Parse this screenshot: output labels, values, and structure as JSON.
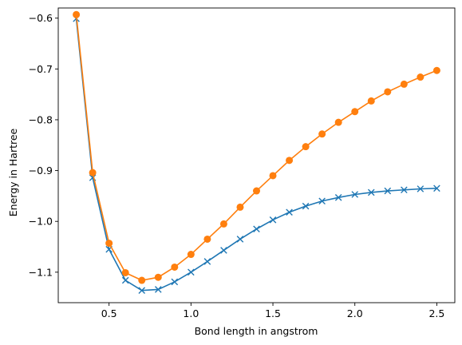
{
  "chart_data": {
    "type": "line",
    "title": "",
    "xlabel": "Bond length in angstrom",
    "ylabel": "Energy in Hartree",
    "xlim": [
      0.19,
      2.61
    ],
    "ylim": [
      -1.16,
      -0.58
    ],
    "xticks": [
      0.5,
      1.0,
      1.5,
      2.0,
      2.5
    ],
    "xtick_labels": [
      "0.5",
      "1.0",
      "1.5",
      "2.0",
      "2.5"
    ],
    "yticks": [
      -0.6,
      -0.7,
      -0.8,
      -0.9,
      -1.0,
      -1.1
    ],
    "ytick_labels": [
      "−0.6",
      "−0.7",
      "−0.8",
      "−0.9",
      "−1.0",
      "−1.1"
    ],
    "grid": false,
    "legend": "none",
    "x": [
      0.3,
      0.4,
      0.5,
      0.6,
      0.7,
      0.8,
      0.9,
      1.0,
      1.1,
      1.2,
      1.3,
      1.4,
      1.5,
      1.6,
      1.7,
      1.8,
      1.9,
      2.0,
      2.1,
      2.2,
      2.3,
      2.4,
      2.5
    ],
    "series": [
      {
        "color": "#1f77b4",
        "marker": "x",
        "values": [
          -0.601,
          -0.914,
          -1.055,
          -1.116,
          -1.136,
          -1.134,
          -1.119,
          -1.1,
          -1.079,
          -1.057,
          -1.035,
          -1.015,
          -0.997,
          -0.982,
          -0.97,
          -0.96,
          -0.953,
          -0.947,
          -0.943,
          -0.94,
          -0.938,
          -0.936,
          -0.935
        ]
      },
      {
        "color": "#ff7f0e",
        "marker": "o",
        "values": [
          -0.593,
          -0.904,
          -1.043,
          -1.101,
          -1.116,
          -1.11,
          -1.09,
          -1.065,
          -1.035,
          -1.005,
          -0.972,
          -0.94,
          -0.91,
          -0.88,
          -0.853,
          -0.828,
          -0.805,
          -0.784,
          -0.763,
          -0.745,
          -0.73,
          -0.716,
          -0.703
        ]
      }
    ]
  }
}
